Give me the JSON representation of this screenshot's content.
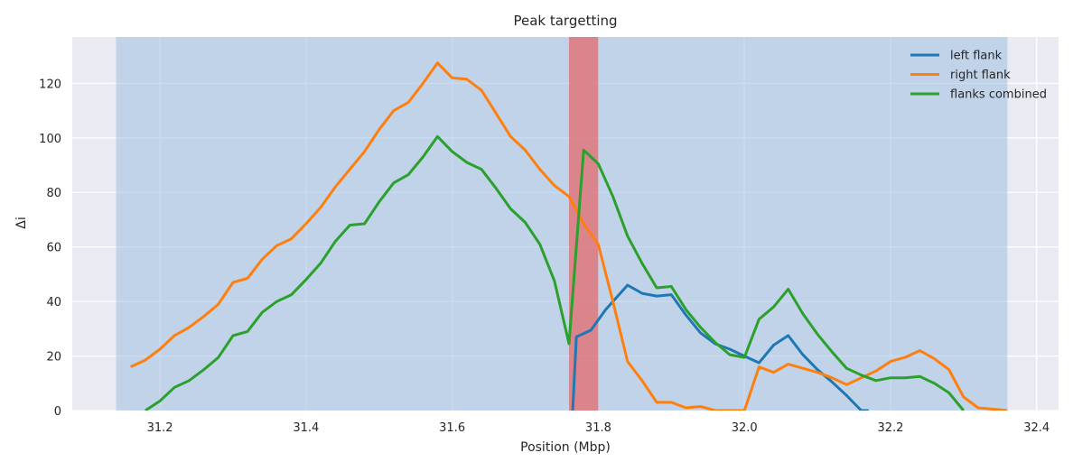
{
  "chart_data": {
    "type": "line",
    "title": "Peak targetting",
    "xlabel": "Position (Mbp)",
    "ylabel": "Δi",
    "xlim": [
      31.08,
      32.43
    ],
    "ylim": [
      0,
      137
    ],
    "xticks": [
      "31.2",
      "31.4",
      "31.6",
      "31.8",
      "32.0",
      "32.2",
      "32.4"
    ],
    "yticks": [
      "0",
      "20",
      "40",
      "60",
      "80",
      "100",
      "120"
    ],
    "grid": true,
    "legend_position": "top-right",
    "shaded_regions": [
      {
        "x0": 31.14,
        "x1": 32.36,
        "color": "#9ec0e0",
        "alpha": 0.55
      },
      {
        "x0": 31.76,
        "x1": 31.8,
        "color": "#e8595a",
        "alpha": 0.65
      }
    ],
    "series": [
      {
        "name": "left flank",
        "color": "#1f77b4",
        "x": [
          31.765,
          31.77,
          31.79,
          31.81,
          31.84,
          31.86,
          31.88,
          31.9,
          31.92,
          31.94,
          31.96,
          31.98,
          32.0,
          32.02,
          32.04,
          32.06,
          32.08,
          32.1,
          32.12,
          32.14,
          32.16,
          32.17
        ],
        "y": [
          0,
          27,
          29.5,
          37,
          46,
          43,
          42,
          42.5,
          35,
          28.5,
          24.5,
          22.5,
          20,
          17.5,
          24,
          27.5,
          20.5,
          15,
          10.5,
          5.5,
          0,
          0
        ]
      },
      {
        "name": "right flank",
        "color": "#ff7f0e",
        "x": [
          31.16,
          31.18,
          31.2,
          31.22,
          31.24,
          31.26,
          31.28,
          31.3,
          31.32,
          31.34,
          31.36,
          31.38,
          31.4,
          31.42,
          31.44,
          31.46,
          31.48,
          31.5,
          31.52,
          31.54,
          31.56,
          31.58,
          31.6,
          31.62,
          31.64,
          31.66,
          31.68,
          31.7,
          31.72,
          31.74,
          31.76,
          31.78,
          31.8,
          31.82,
          31.84,
          31.86,
          31.88,
          31.9,
          31.92,
          31.94,
          31.96,
          31.98,
          32.0,
          32.02,
          32.04,
          32.06,
          32.08,
          32.1,
          32.12,
          32.14,
          32.16,
          32.18,
          32.2,
          32.22,
          32.24,
          32.26,
          32.28,
          32.3,
          32.32,
          32.34,
          32.36
        ],
        "y": [
          16,
          18.5,
          22.5,
          27.5,
          30.5,
          34.5,
          39,
          47,
          48.5,
          55.5,
          60.5,
          63,
          68.5,
          74.5,
          82,
          88.5,
          95,
          103,
          110,
          113,
          120,
          127.5,
          122,
          121.5,
          117.5,
          109,
          100.5,
          95.5,
          88.5,
          82.5,
          78.5,
          68.5,
          61,
          40,
          18,
          11,
          3,
          3,
          1,
          1.5,
          0,
          0,
          0,
          16,
          14,
          17,
          15.5,
          14,
          12,
          9.5,
          12,
          14.5,
          18,
          19.5,
          22,
          19,
          15,
          5,
          1,
          0.5,
          0
        ]
      },
      {
        "name": "flanks combined",
        "color": "#2ca02c",
        "x": [
          31.18,
          31.2,
          31.22,
          31.24,
          31.26,
          31.28,
          31.3,
          31.32,
          31.34,
          31.36,
          31.38,
          31.4,
          31.42,
          31.44,
          31.46,
          31.48,
          31.5,
          31.52,
          31.54,
          31.56,
          31.58,
          31.6,
          31.62,
          31.64,
          31.66,
          31.68,
          31.7,
          31.72,
          31.74,
          31.76,
          31.78,
          31.8,
          31.82,
          31.84,
          31.86,
          31.88,
          31.9,
          31.92,
          31.94,
          31.96,
          31.98,
          32.0,
          32.02,
          32.04,
          32.06,
          32.08,
          32.1,
          32.12,
          32.14,
          32.16,
          32.18,
          32.2,
          32.22,
          32.24,
          32.26,
          32.28,
          32.3
        ],
        "y": [
          0,
          3.5,
          8.5,
          11,
          15,
          19.5,
          27.5,
          29,
          36,
          40,
          42.5,
          48,
          54,
          62,
          68,
          68.5,
          76.5,
          83.5,
          86.5,
          93,
          100.5,
          95,
          91,
          88.5,
          81.5,
          74,
          69,
          61,
          47.5,
          24.5,
          95.5,
          90.5,
          78.5,
          64,
          54,
          45,
          45.5,
          37,
          30.5,
          25,
          20.5,
          19.5,
          33.5,
          38,
          44.5,
          35.5,
          28,
          21.5,
          15.5,
          13,
          11,
          12,
          12,
          12.5,
          10,
          6.5,
          0
        ]
      }
    ]
  }
}
